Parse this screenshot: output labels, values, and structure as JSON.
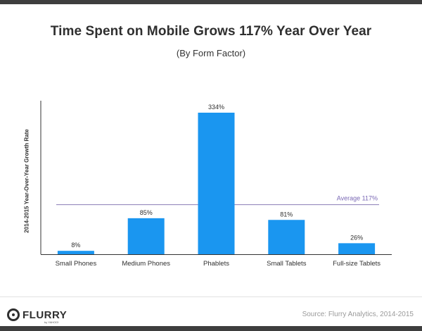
{
  "title": "Time Spent on Mobile Grows 117% Year Over Year",
  "subtitle": "(By Form Factor)",
  "source": "Source: Flurry Analytics, 2014-2015",
  "logo": {
    "word": "FLURRY",
    "sub": "by YAHOO!"
  },
  "colors": {
    "bar": "#1a96f0",
    "average_line": "#8a7bb5",
    "average_label": "#7a68b5",
    "axis": "#333333",
    "text": "#2f2f2f"
  },
  "chart_data": {
    "type": "bar",
    "categories": [
      "Small Phones",
      "Medium Phones",
      "Phablets",
      "Small Tablets",
      "Full-size Tablets"
    ],
    "values": [
      8,
      85,
      334,
      81,
      26
    ],
    "value_labels": [
      "8%",
      "85%",
      "334%",
      "81%",
      "26%"
    ],
    "title": "Time Spent on Mobile Grows 117% Year Over Year",
    "subtitle": "(By Form Factor)",
    "xlabel": "",
    "ylabel": "2014-2015 Year-Over-Year Growth Rate",
    "ylim": [
      0,
      360
    ],
    "reference_line": {
      "value": 117,
      "label": "Average 117%"
    },
    "grid": false,
    "legend": "none"
  }
}
